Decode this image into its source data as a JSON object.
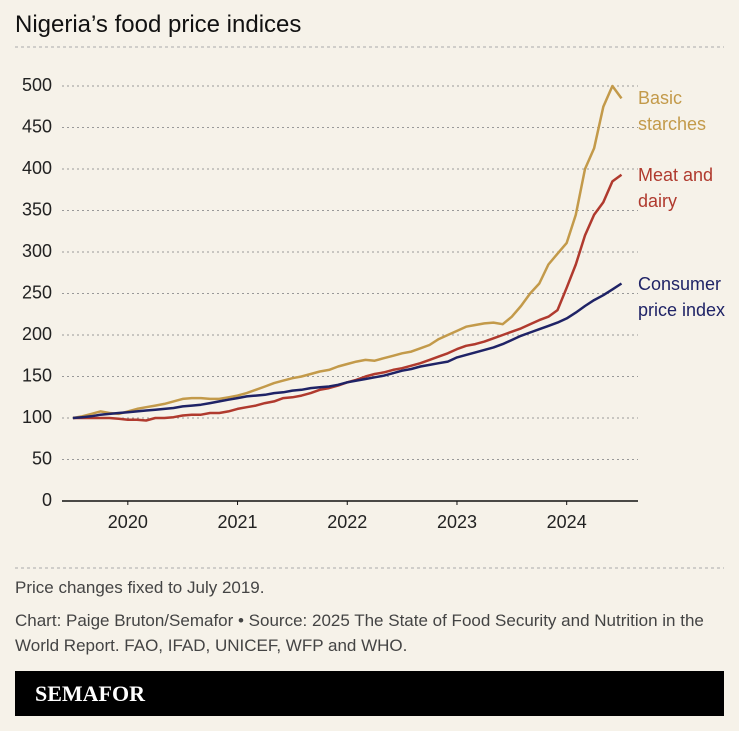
{
  "chart_data": {
    "type": "line",
    "title": "Nigeria’s food price indices",
    "x": [
      2019.5,
      2019.5833,
      2019.6667,
      2019.75,
      2019.8333,
      2019.9167,
      2020,
      2020.0833,
      2020.1667,
      2020.25,
      2020.3333,
      2020.4167,
      2020.5,
      2020.5833,
      2020.6667,
      2020.75,
      2020.8333,
      2020.9167,
      2021,
      2021.0833,
      2021.1667,
      2021.25,
      2021.3333,
      2021.4167,
      2021.5,
      2021.5833,
      2021.6667,
      2021.75,
      2021.8333,
      2021.9167,
      2022,
      2022.0833,
      2022.1667,
      2022.25,
      2022.3333,
      2022.4167,
      2022.5,
      2022.5833,
      2022.6667,
      2022.75,
      2022.8333,
      2022.9167,
      2023,
      2023.0833,
      2023.1667,
      2023.25,
      2023.3333,
      2023.4167,
      2023.5,
      2023.5833,
      2023.6667,
      2023.75,
      2023.8333,
      2023.9167,
      2024,
      2024.0833,
      2024.1667,
      2024.25,
      2024.3333,
      2024.4167,
      2024.5
    ],
    "series": [
      {
        "name": "Basic starches",
        "color": "#c39a4a",
        "values": [
          100,
          102,
          105,
          108,
          106,
          105,
          108,
          111,
          113,
          115,
          117,
          120,
          123,
          124,
          124,
          123,
          123,
          125,
          127,
          130,
          134,
          138,
          142,
          145,
          148,
          150,
          153,
          156,
          158,
          162,
          165,
          168,
          170,
          169,
          172,
          175,
          178,
          180,
          184,
          188,
          195,
          200,
          205,
          210,
          212,
          214,
          215,
          213,
          222,
          235,
          250,
          262,
          285,
          298,
          311,
          345,
          400,
          425,
          475,
          500,
          485
        ]
      },
      {
        "name": "Meat and dairy",
        "color": "#b03a2e",
        "values": [
          100,
          100,
          100,
          100,
          100,
          99,
          98,
          98,
          97,
          100,
          100,
          101,
          103,
          104,
          104,
          106,
          106,
          108,
          111,
          113,
          115,
          118,
          120,
          124,
          125,
          127,
          130,
          134,
          136,
          139,
          143,
          146,
          150,
          153,
          155,
          158,
          160,
          163,
          166,
          170,
          174,
          178,
          183,
          187,
          189,
          192,
          196,
          200,
          204,
          208,
          213,
          218,
          222,
          230,
          257,
          285,
          320,
          345,
          360,
          385,
          393
        ]
      },
      {
        "name": "Consumer price index",
        "color": "#1f2366",
        "values": [
          100,
          101,
          102,
          104,
          105,
          106,
          107,
          108,
          109,
          110,
          111,
          112,
          114,
          115,
          116,
          118,
          120,
          122,
          124,
          126,
          127,
          128,
          130,
          131,
          133,
          134,
          136,
          137,
          138,
          140,
          143,
          145,
          147,
          149,
          151,
          154,
          157,
          159,
          162,
          164,
          166,
          168,
          173,
          176,
          179,
          182,
          185,
          189,
          194,
          199,
          203,
          207,
          211,
          215,
          220,
          227,
          235,
          242,
          248,
          255,
          262
        ]
      }
    ],
    "xlim": [
      2019.4,
      2024.65
    ],
    "xticks": [
      2020,
      2021,
      2022,
      2023,
      2024
    ],
    "ylim": [
      0,
      500
    ],
    "yticks": [
      0,
      50,
      100,
      150,
      200,
      250,
      300,
      350,
      400,
      450,
      500
    ],
    "grid": true,
    "notes": [
      "Price changes fixed to July 2019.",
      "Chart: Paige Bruton/Semafor • Source: 2025 The State of Food Security and Nutrition in the World Report. FAO, IFAD, UNICEF, WFP and WHO."
    ],
    "brand": "SEMAFOR"
  }
}
